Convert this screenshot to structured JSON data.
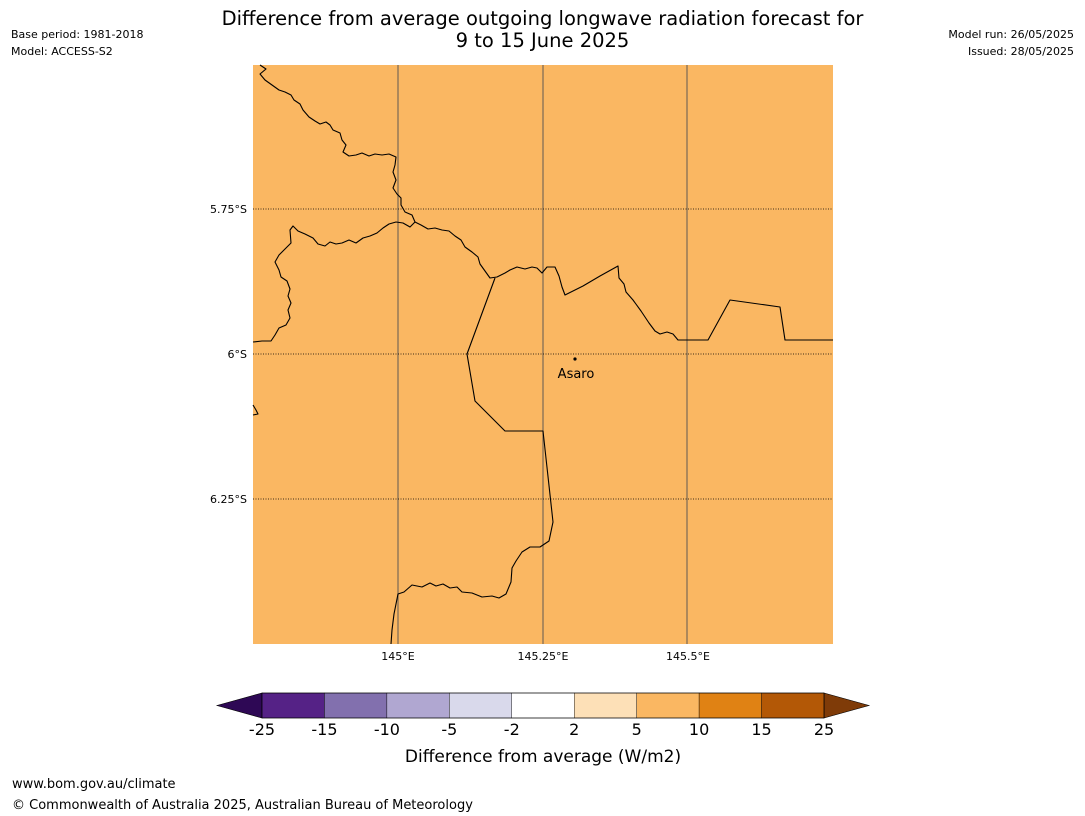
{
  "title": {
    "line1": "Difference from average outgoing longwave radiation forecast for",
    "line2": "9 to 15 June 2025"
  },
  "meta_left": {
    "base_period": "Base period: 1981-2018",
    "model": "Model: ACCESS-S2"
  },
  "meta_right": {
    "model_run": "Model run: 26/05/2025",
    "issued": "Issued: 28/05/2025"
  },
  "map": {
    "fill_color": "#fab762",
    "border_color": "#000000",
    "gridline_color": "#7a6a55",
    "lat_ticks": [
      "5.75°S",
      "6°S",
      "6.25°S"
    ],
    "lon_ticks": [
      "145°E",
      "145.25°E",
      "145.5°E"
    ],
    "place": {
      "name": "Asaro"
    }
  },
  "colorbar": {
    "label": "Difference from average (W/m2)",
    "ticks": [
      "-25",
      "-15",
      "-10",
      "-5",
      "-2",
      "2",
      "5",
      "10",
      "15",
      "25"
    ],
    "colors": [
      "#552286",
      "#8270ae",
      "#b0a7d1",
      "#d9d9eb",
      "#ffffff",
      "#fde0b7",
      "#fab762",
      "#e08214",
      "#b35806"
    ],
    "extend_low_color": "#2e0855",
    "extend_high_color": "#7f3b08"
  },
  "footer": {
    "url": "www.bom.gov.au/climate",
    "copyright": "© Commonwealth of Australia 2025, Australian Bureau of Meteorology"
  }
}
